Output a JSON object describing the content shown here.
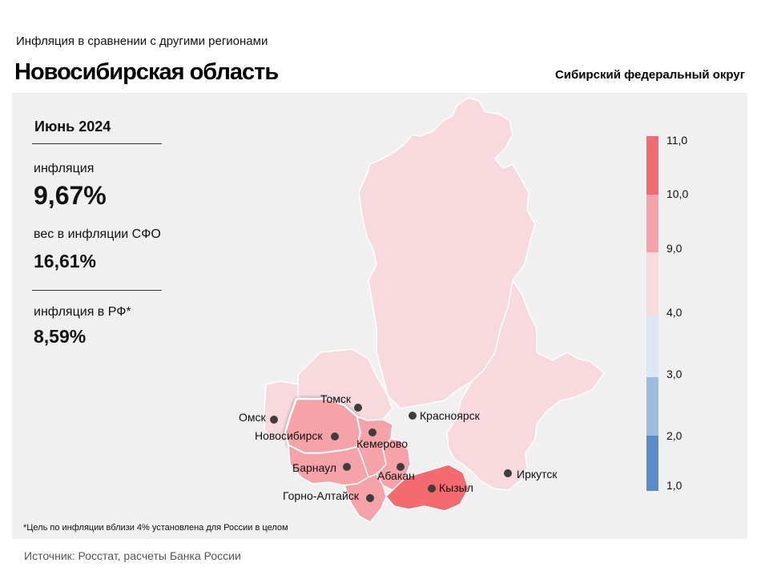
{
  "header": {
    "subtitle": "Инфляция  в сравнении  с другими  регионами",
    "title": "Новосибирская область",
    "district": "Сибирский федеральный округ"
  },
  "stats": {
    "period": "Июнь 2024",
    "inflation_label": "инфляция",
    "inflation_value": "9,67%",
    "weight_label": "вес в инфляции  СФО",
    "weight_value": "16,61%",
    "rf_label": "инфляция  в РФ*",
    "rf_value": "8,59%"
  },
  "legend": {
    "bins": [
      {
        "from": 1.0,
        "to": 2.0,
        "color": "#5b8cc8"
      },
      {
        "from": 2.0,
        "to": 3.0,
        "color": "#9dbde0"
      },
      {
        "from": 3.0,
        "to": 4.0,
        "color": "#dde6f5"
      },
      {
        "from": 4.0,
        "to": 9.0,
        "color": "#f8dade"
      },
      {
        "from": 9.0,
        "to": 10.0,
        "color": "#f5a3a9"
      },
      {
        "from": 10.0,
        "to": 11.0,
        "color": "#f36b6e"
      }
    ],
    "ticks": [
      "11,0",
      "10,0",
      "9,0",
      "4,0",
      "3,0",
      "2,0",
      "1,0"
    ]
  },
  "cities": [
    {
      "id": "tomsk",
      "name": "Томск"
    },
    {
      "id": "krasnoyarsk",
      "name": "Красноярск"
    },
    {
      "id": "omsk",
      "name": "Омск"
    },
    {
      "id": "novosibirsk",
      "name": "Новосибирск"
    },
    {
      "id": "kemerovo",
      "name": "Кемерово"
    },
    {
      "id": "barnaul",
      "name": "Барнаул"
    },
    {
      "id": "abakan",
      "name": "Абакан"
    },
    {
      "id": "kyzyl",
      "name": "Кызыл"
    },
    {
      "id": "irkutsk",
      "name": "Иркутск"
    },
    {
      "id": "gorno_altaysk",
      "name": "Горно-Алтайск"
    }
  ],
  "footnote": "*Цель по инфляции вблизи 4% установлена для России в целом",
  "source": "Источник: Росстат, расчеты Банка России"
}
